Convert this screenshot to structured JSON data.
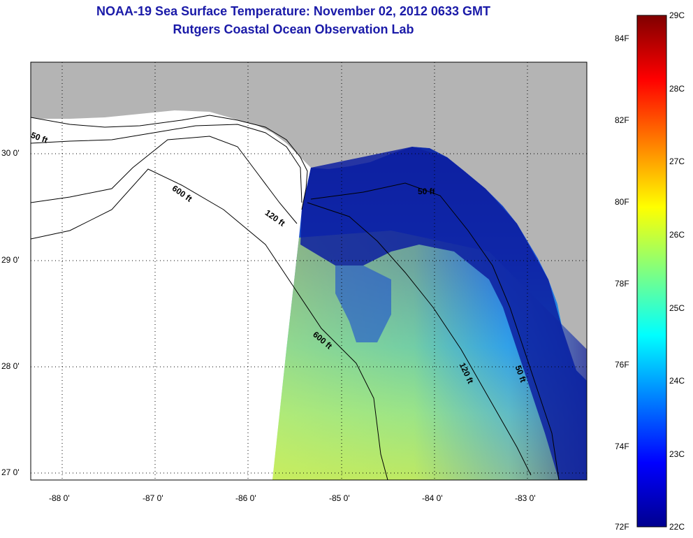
{
  "title": "NOAA-19 Sea Surface Temperature:  November 02, 2012 0633 GMT",
  "subtitle": "Rutgers Coastal Ocean Observation Lab",
  "map": {
    "lon_ticks": [
      "-88 0'",
      "-87 0'",
      "-86 0'",
      "-85 0'",
      "-84 0'",
      "-83 0'"
    ],
    "lat_ticks": [
      "30 0'",
      "29 0'",
      "28 0'",
      "27 0'"
    ],
    "contour_labels": [
      "50 ft",
      "600 ft",
      "120 ft",
      "50 ft",
      "600 ft",
      "120 ft",
      "50 ft"
    ],
    "land_color": "#b4b4b4",
    "nodata_color": "#ffffff"
  },
  "colorbar": {
    "celsius_labels": [
      "29C",
      "28C",
      "27C",
      "26C",
      "25C",
      "24C",
      "23C",
      "22C"
    ],
    "fahrenheit_labels": [
      "84F",
      "82F",
      "80F",
      "78F",
      "76F",
      "74F",
      "72F"
    ],
    "colormap": "jet",
    "range_c": [
      22,
      29
    ]
  }
}
